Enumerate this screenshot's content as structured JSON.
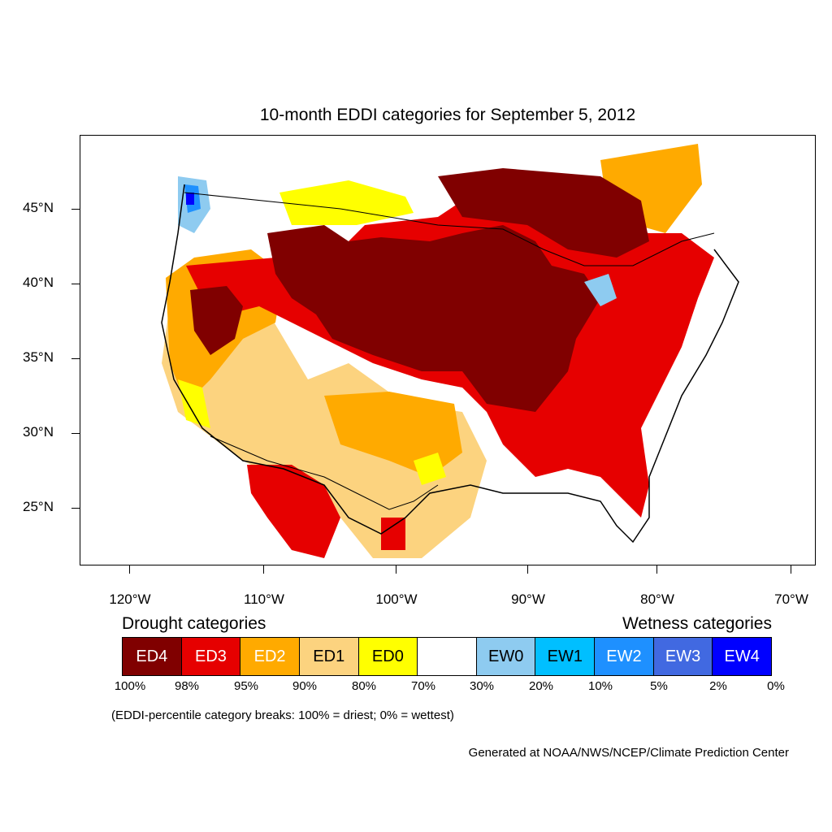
{
  "title": "10-month EDDI categories for September 5, 2012",
  "lat_labels": [
    "45°N",
    "40°N",
    "35°N",
    "30°N",
    "25°N"
  ],
  "lon_labels": [
    "120°W",
    "110°W",
    "100°W",
    "90°W",
    "80°W",
    "70°W"
  ],
  "legend": {
    "drought_heading": "Drought categories",
    "wetness_heading": "Wetness categories",
    "categories": [
      {
        "label": "ED4",
        "color": "#800000",
        "text_color": "#ffffff"
      },
      {
        "label": "ED3",
        "color": "#e60000",
        "text_color": "#ffffff"
      },
      {
        "label": "ED2",
        "color": "#ffaa00",
        "text_color": "#ffffff"
      },
      {
        "label": "ED1",
        "color": "#fcd37f",
        "text_color": "#000000"
      },
      {
        "label": "ED0",
        "color": "#ffff00",
        "text_color": "#000000"
      },
      {
        "label": "",
        "color": "#ffffff",
        "text_color": "#000000"
      },
      {
        "label": "EW0",
        "color": "#8ecbf0",
        "text_color": "#000000"
      },
      {
        "label": "EW1",
        "color": "#00bfff",
        "text_color": "#000000"
      },
      {
        "label": "EW2",
        "color": "#1e90ff",
        "text_color": "#ffffff"
      },
      {
        "label": "EW3",
        "color": "#4169e1",
        "text_color": "#ffffff"
      },
      {
        "label": "EW4",
        "color": "#0000ff",
        "text_color": "#ffffff"
      }
    ],
    "breaks": [
      "100%",
      "98%",
      "95%",
      "90%",
      "80%",
      "70%",
      "30%",
      "20%",
      "10%",
      "5%",
      "2%",
      "0%"
    ]
  },
  "note": "(EDDI-percentile category breaks: 100% = driest; 0% = wettest)",
  "credit": "Generated at NOAA/NWS/NCEP/Climate Prediction Center"
}
